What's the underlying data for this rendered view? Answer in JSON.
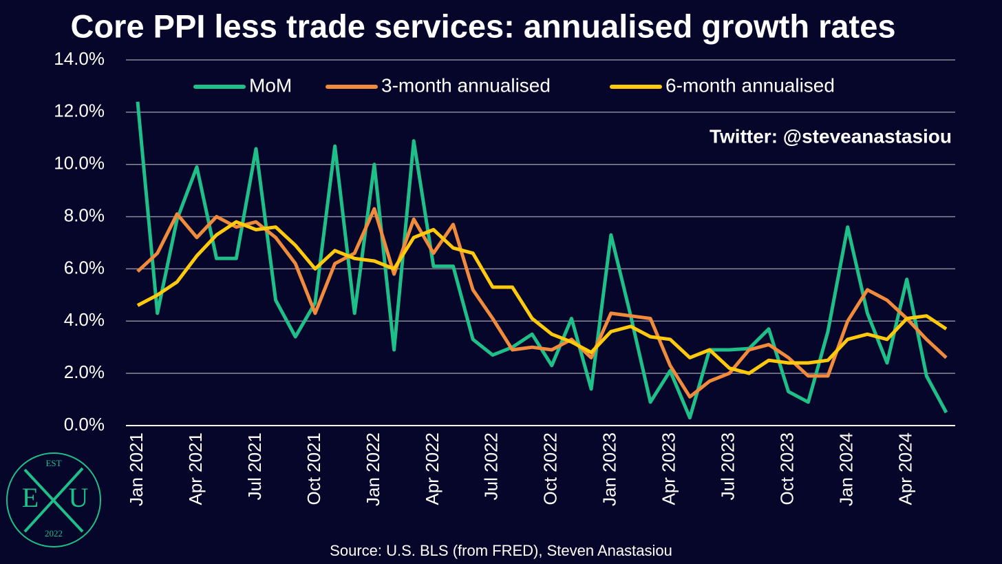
{
  "chart_data": {
    "type": "line",
    "title": "Core PPI less trade services: annualised growth rates",
    "annotation": "Twitter: @steveanastasiou",
    "source": "Source: U.S. BLS (from FRED), Steven Anastasiou",
    "categories": [
      "Jan 2021",
      null,
      null,
      "Apr 2021",
      null,
      null,
      "Jul 2021",
      null,
      null,
      "Oct 2021",
      null,
      null,
      "Jan 2022",
      null,
      null,
      "Apr 2022",
      null,
      null,
      "Jul 2022",
      null,
      null,
      "Oct 2022",
      null,
      null,
      "Jan 2023",
      null,
      null,
      "Apr 2023",
      null,
      null,
      "Jul 2023",
      null,
      null,
      "Oct 2023",
      null,
      null,
      "Jan 2024",
      null,
      null,
      "Apr 2024",
      null,
      null
    ],
    "series": [
      {
        "name": "MoM",
        "color": "#1fbf8a",
        "values": [
          12.4,
          4.3,
          7.9,
          9.9,
          6.4,
          6.4,
          10.6,
          4.8,
          3.4,
          4.7,
          10.7,
          4.3,
          10.0,
          2.9,
          10.9,
          6.1,
          6.1,
          3.3,
          2.7,
          3.0,
          3.5,
          2.3,
          4.1,
          1.4,
          7.3,
          4.2,
          0.9,
          2.1,
          0.3,
          2.9,
          2.9,
          2.95,
          3.7,
          1.3,
          0.9,
          3.6,
          7.6,
          4.3,
          2.4,
          5.6,
          1.9,
          0.5
        ]
      },
      {
        "name": "3-month annualised",
        "color": "#f08a3c",
        "values": [
          5.9,
          6.6,
          8.1,
          7.2,
          8.0,
          7.6,
          7.8,
          7.2,
          6.2,
          4.3,
          6.2,
          6.6,
          8.3,
          5.8,
          7.9,
          6.6,
          7.7,
          5.2,
          4.1,
          2.9,
          3.0,
          2.9,
          3.3,
          2.6,
          4.3,
          4.2,
          4.1,
          2.3,
          1.1,
          1.7,
          2.0,
          2.9,
          3.1,
          2.6,
          1.9,
          1.9,
          4.0,
          5.2,
          4.8,
          4.1,
          3.3,
          2.6
        ]
      },
      {
        "name": "6-month annualised",
        "color": "#ffc90e",
        "values": [
          4.6,
          5.0,
          5.5,
          6.5,
          7.3,
          7.8,
          7.5,
          7.6,
          6.9,
          6.0,
          6.7,
          6.4,
          6.3,
          6.0,
          7.2,
          7.5,
          6.8,
          6.6,
          5.3,
          5.3,
          4.1,
          3.5,
          3.2,
          2.8,
          3.6,
          3.8,
          3.4,
          3.3,
          2.6,
          2.9,
          2.2,
          2.0,
          2.5,
          2.4,
          2.4,
          2.5,
          3.3,
          3.5,
          3.3,
          4.1,
          4.2,
          3.7
        ]
      }
    ],
    "ylim": [
      0,
      14
    ],
    "yticks": [
      {
        "value": 0,
        "label": "0.0%"
      },
      {
        "value": 2,
        "label": "2.0%"
      },
      {
        "value": 4,
        "label": "4.0%"
      },
      {
        "value": 6,
        "label": "6.0%"
      },
      {
        "value": 8,
        "label": "8.0%"
      },
      {
        "value": 10,
        "label": "10.0%"
      },
      {
        "value": 12,
        "label": "12.0%"
      },
      {
        "value": 14,
        "label": "14.0%"
      }
    ],
    "grid": true,
    "legend": "top",
    "logo": {
      "top": "EST",
      "left": "E",
      "right": "U",
      "bottom": "2022"
    }
  }
}
